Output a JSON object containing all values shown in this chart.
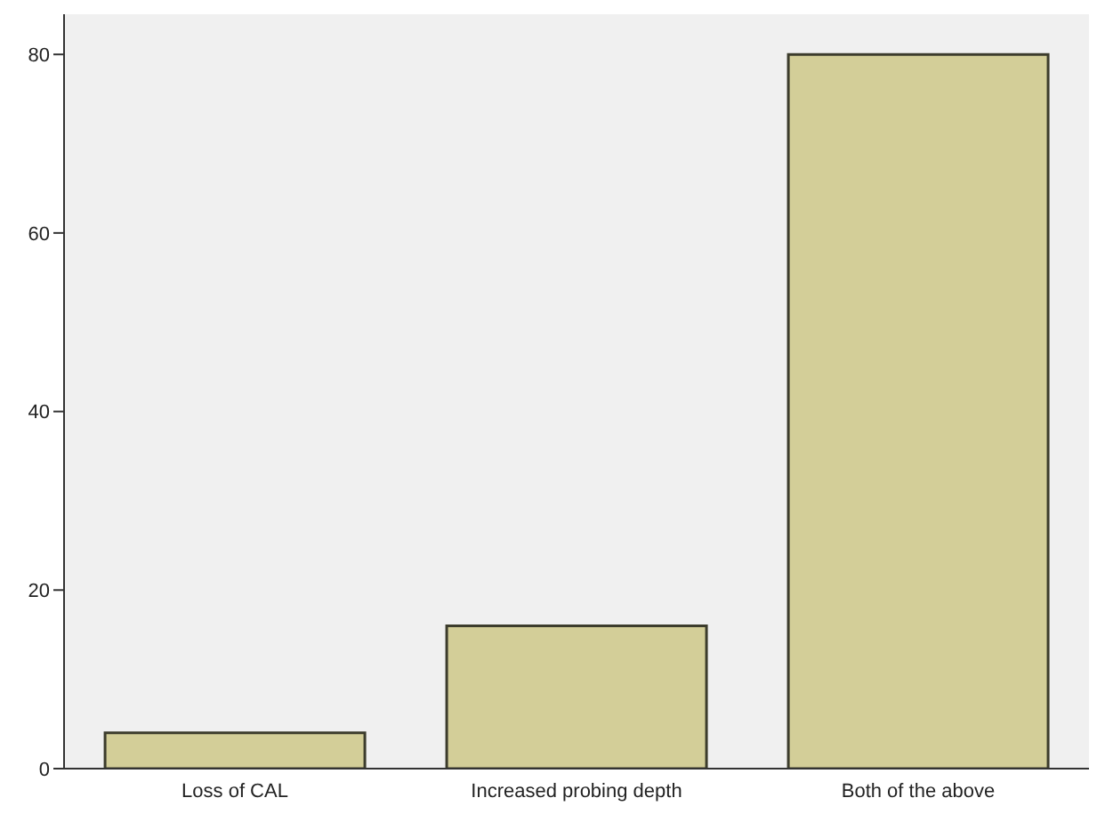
{
  "chart_data": {
    "type": "bar",
    "categories": [
      "Loss of CAL",
      "Increased probing depth",
      "Both of the above"
    ],
    "values": [
      4,
      16,
      80
    ],
    "color": "#d3ce98",
    "ylim": [
      0,
      84.5
    ],
    "yticks": [
      0,
      20,
      40,
      60,
      80
    ],
    "grid": false
  }
}
